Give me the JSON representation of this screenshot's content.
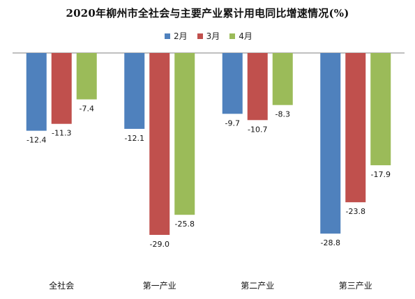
{
  "chart_data": {
    "type": "bar",
    "title": "2020年柳州市全社会与主要产业累计用电同比增速情况(%)",
    "categories": [
      "全社会",
      "第一产业",
      "第二产业",
      "第三产业"
    ],
    "series": [
      {
        "name": "2月",
        "color": "#4F81BD",
        "values": [
          -12.4,
          -12.1,
          -9.7,
          -28.8
        ]
      },
      {
        "name": "3月",
        "color": "#C0504D",
        "values": [
          -11.3,
          -29.0,
          -10.7,
          -23.8
        ]
      },
      {
        "name": "4月",
        "color": "#9BBB59",
        "values": [
          -7.4,
          -25.8,
          -8.3,
          -17.9
        ]
      }
    ],
    "value_labels": [
      [
        "-12.4",
        "-12.1",
        "-9.7",
        "-28.8"
      ],
      [
        "-11.3",
        "-29.0",
        "-10.7",
        "-23.8"
      ],
      [
        "-7.4",
        "-25.8",
        "-8.3",
        "-17.9"
      ]
    ],
    "xlabel": "",
    "ylabel": "",
    "ylim": [
      -30,
      0
    ],
    "grid": false,
    "legend_position": "top"
  }
}
